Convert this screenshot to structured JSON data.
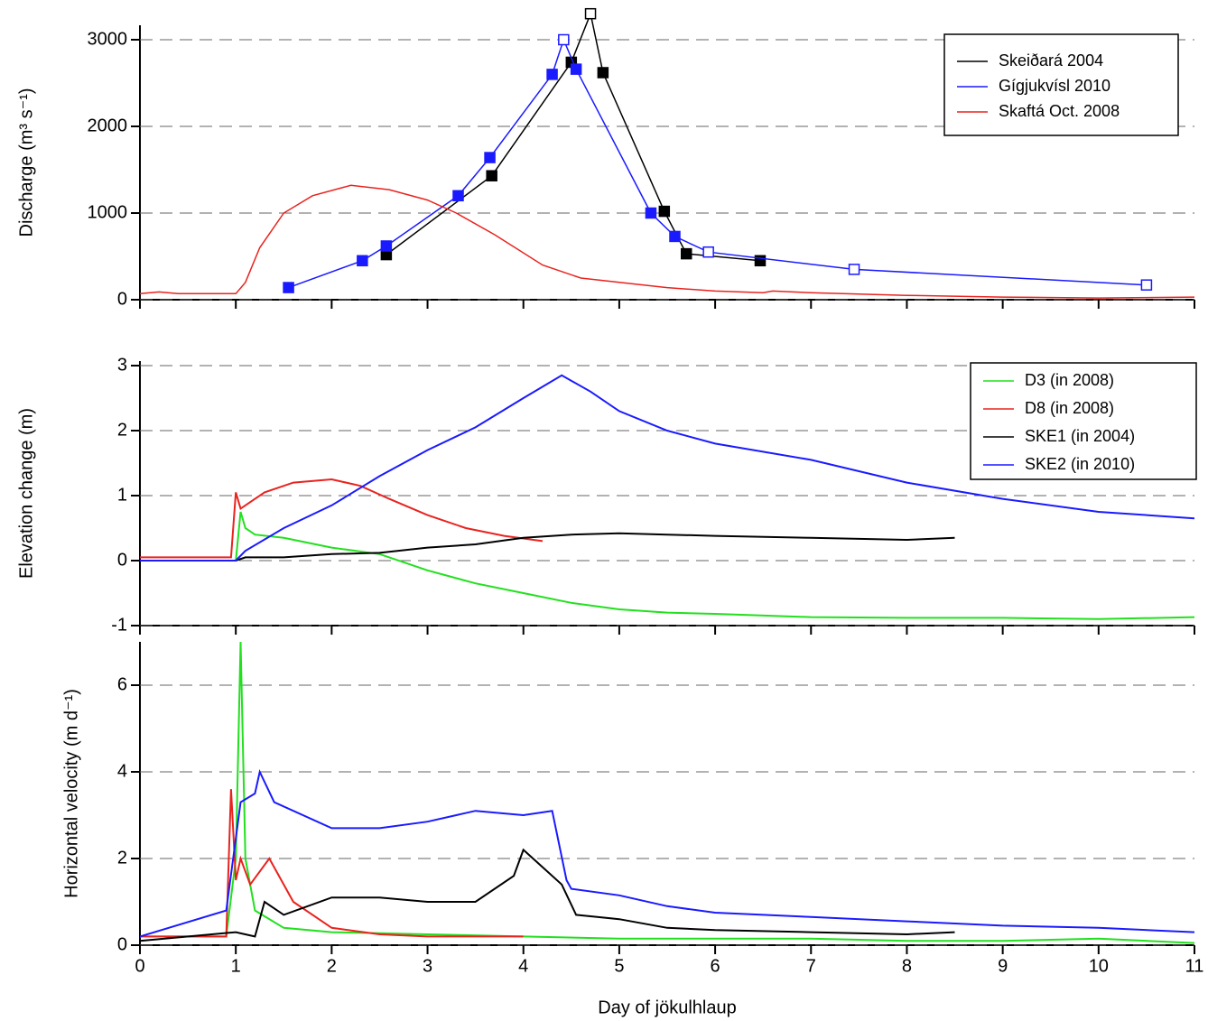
{
  "chart_data": [
    {
      "type": "line",
      "ylabel": "Discharge (m³ s⁻¹)",
      "xlim": [
        0,
        11
      ],
      "ylim": [
        0,
        3000
      ],
      "yticks": [
        0,
        1000,
        2000,
        3000
      ],
      "grid": true,
      "legend": "upper right",
      "series": [
        {
          "name": "Skeiðará 2004",
          "color": "#000000",
          "marker": "square",
          "x": [
            2.57,
            3.67,
            4.5,
            4.7,
            4.83,
            5.47,
            5.7,
            6.47
          ],
          "values": [
            520,
            1430,
            2740,
            3300,
            2620,
            1020,
            530,
            450
          ],
          "open": [
            false,
            false,
            false,
            true,
            false,
            false,
            false,
            false
          ]
        },
        {
          "name": "Gígjukvísl 2010",
          "color": "#1a1aff",
          "marker": "square",
          "x": [
            1.55,
            2.32,
            2.57,
            3.32,
            3.65,
            4.3,
            4.42,
            4.55,
            5.33,
            5.58,
            5.93,
            7.45,
            10.5
          ],
          "values": [
            140,
            450,
            620,
            1200,
            1640,
            2600,
            3000,
            2660,
            1000,
            730,
            550,
            350,
            170
          ],
          "open": [
            false,
            false,
            false,
            false,
            false,
            false,
            true,
            false,
            false,
            false,
            true,
            true,
            true
          ]
        },
        {
          "name": "Skaftá Oct. 2008",
          "color": "#e8231e",
          "x": [
            0,
            0.2,
            0.4,
            1.0,
            1.1,
            1.25,
            1.5,
            1.8,
            2.2,
            2.6,
            3.0,
            3.3,
            3.7,
            4.2,
            4.6,
            5,
            5.5,
            6,
            6.5,
            6.6,
            7,
            8,
            9,
            10,
            11
          ],
          "values": [
            70,
            90,
            70,
            70,
            200,
            600,
            1000,
            1200,
            1320,
            1270,
            1150,
            1000,
            750,
            400,
            250,
            200,
            140,
            100,
            80,
            100,
            80,
            50,
            30,
            20,
            30
          ]
        }
      ]
    },
    {
      "type": "line",
      "ylabel": "Elevation change (m)",
      "xlim": [
        0,
        11
      ],
      "ylim": [
        -1,
        3
      ],
      "yticks": [
        -1,
        0,
        1,
        2,
        3
      ],
      "grid": true,
      "legend": "upper right",
      "series": [
        {
          "name": "D3 (in 2008)",
          "color": "#22e01e",
          "x": [
            0,
            1,
            1.05,
            1.1,
            1.2,
            1.5,
            2,
            2.5,
            3,
            3.5,
            4,
            4.5,
            5,
            5.5,
            6,
            7,
            8,
            9,
            10,
            11
          ],
          "values": [
            0,
            0,
            0.75,
            0.5,
            0.4,
            0.35,
            0.2,
            0.1,
            -0.15,
            -0.35,
            -0.5,
            -0.65,
            -0.75,
            -0.8,
            -0.82,
            -0.87,
            -0.88,
            -0.88,
            -0.9,
            -0.87
          ]
        },
        {
          "name": "D8 (in 2008)",
          "color": "#e8231e",
          "x": [
            0,
            0.95,
            1.0,
            1.05,
            1.3,
            1.6,
            2,
            2.3,
            2.6,
            3,
            3.4,
            3.8,
            4.2
          ],
          "values": [
            0.05,
            0.05,
            1.05,
            0.8,
            1.05,
            1.2,
            1.25,
            1.15,
            0.95,
            0.7,
            0.5,
            0.38,
            0.3
          ]
        },
        {
          "name": "SKE1 (in 2004)",
          "color": "#000000",
          "x": [
            0,
            1,
            1.1,
            1.5,
            2,
            2.5,
            3,
            3.5,
            4,
            4.5,
            5,
            5.5,
            6,
            7,
            8,
            8.5
          ],
          "values": [
            0,
            0,
            0.05,
            0.05,
            0.1,
            0.12,
            0.2,
            0.25,
            0.35,
            0.4,
            0.42,
            0.4,
            0.38,
            0.35,
            0.32,
            0.35
          ]
        },
        {
          "name": "SKE2 (in 2010)",
          "color": "#1a1aff",
          "x": [
            0,
            1,
            1.1,
            1.5,
            2,
            2.5,
            3,
            3.5,
            4,
            4.4,
            4.7,
            5,
            5.5,
            6,
            7,
            8,
            9,
            10,
            11
          ],
          "values": [
            0,
            0,
            0.15,
            0.5,
            0.85,
            1.3,
            1.7,
            2.05,
            2.5,
            2.85,
            2.6,
            2.3,
            2.0,
            1.8,
            1.55,
            1.2,
            0.95,
            0.75,
            0.65
          ]
        }
      ]
    },
    {
      "type": "line",
      "ylabel": "Horizontal velocity (m d⁻¹)",
      "xlabel": "Day of jökulhlaup",
      "xlim": [
        0,
        11
      ],
      "xticks": [
        0,
        1,
        2,
        3,
        4,
        5,
        6,
        7,
        8,
        9,
        10,
        11
      ],
      "ylim": [
        0,
        7
      ],
      "yticks": [
        0,
        2,
        4,
        6
      ],
      "grid": true,
      "series": [
        {
          "color": "#22e01e",
          "x": [
            0,
            0.9,
            1.0,
            1.05,
            1.1,
            1.2,
            1.5,
            2,
            3,
            4,
            5,
            6,
            7,
            8,
            9,
            10,
            11
          ],
          "values": [
            0.2,
            0.2,
            2.0,
            7.0,
            2.0,
            0.8,
            0.4,
            0.3,
            0.25,
            0.2,
            0.15,
            0.15,
            0.15,
            0.1,
            0.1,
            0.15,
            0.05
          ]
        },
        {
          "color": "#e8231e",
          "x": [
            0,
            0.9,
            0.95,
            1.0,
            1.05,
            1.15,
            1.35,
            1.6,
            2,
            2.5,
            3,
            4
          ],
          "values": [
            0.2,
            0.2,
            3.6,
            1.5,
            2.0,
            1.4,
            2.0,
            1.0,
            0.4,
            0.25,
            0.2,
            0.2
          ]
        },
        {
          "color": "#000000",
          "x": [
            0,
            1,
            1.2,
            1.3,
            1.5,
            2,
            2.5,
            3,
            3.5,
            3.9,
            4,
            4.2,
            4.4,
            4.55,
            5,
            5.5,
            6,
            7,
            8,
            8.5
          ],
          "values": [
            0.1,
            0.3,
            0.2,
            1.0,
            0.7,
            1.1,
            1.1,
            1.0,
            1.0,
            1.6,
            2.2,
            1.8,
            1.4,
            0.7,
            0.6,
            0.4,
            0.35,
            0.3,
            0.25,
            0.3
          ]
        },
        {
          "color": "#1a1aff",
          "x": [
            0,
            0.9,
            1.05,
            1.2,
            1.25,
            1.4,
            2,
            2.5,
            3,
            3.5,
            4,
            4.3,
            4.45,
            4.5,
            5,
            5.5,
            6,
            7,
            8,
            9,
            10,
            11
          ],
          "values": [
            0.2,
            0.8,
            3.3,
            3.5,
            4.0,
            3.3,
            2.7,
            2.7,
            2.85,
            3.1,
            3.0,
            3.1,
            1.5,
            1.3,
            1.15,
            0.9,
            0.75,
            0.65,
            0.55,
            0.45,
            0.4,
            0.3
          ]
        }
      ]
    }
  ]
}
